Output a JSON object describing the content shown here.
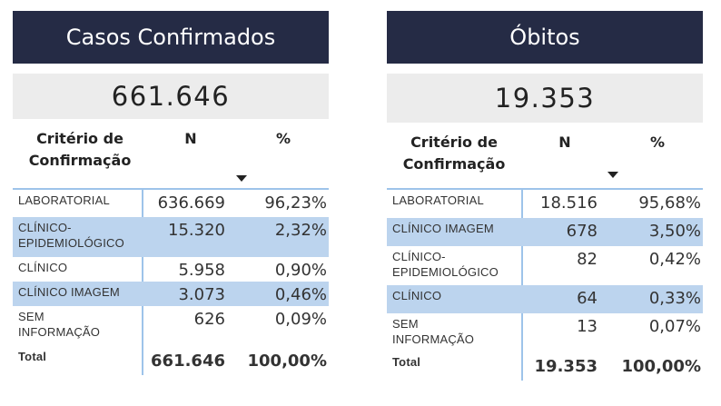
{
  "left": {
    "title": "Casos Confirmados",
    "kpi": "661.646",
    "headers": {
      "criterio_line1": "Critério de",
      "criterio_line2": "Confirmação",
      "n": "N",
      "pct": "%"
    },
    "rows": [
      {
        "label": "LABORATORIAL",
        "n": "636.669",
        "pct": "96,23%"
      },
      {
        "label": "CLÍNICO-\nEPIDEMIOLÓGICO",
        "label_l1": "CLÍNICO-",
        "label_l2": "EPIDEMIOLÓGICO",
        "n": "15.320",
        "pct": "2,32%"
      },
      {
        "label": "CLÍNICO",
        "n": "5.958",
        "pct": "0,90%"
      },
      {
        "label": "CLÍNICO IMAGEM",
        "n": "3.073",
        "pct": "0,46%"
      },
      {
        "label_l1": "SEM",
        "label_l2": "INFORMAÇÃO",
        "n": "626",
        "pct": "0,09%"
      }
    ],
    "total": {
      "label": "Total",
      "n": "661.646",
      "pct": "100,00%"
    }
  },
  "right": {
    "title": "Óbitos",
    "kpi": "19.353",
    "headers": {
      "criterio_line1": "Critério de",
      "criterio_line2": "Confirmação",
      "n": "N",
      "pct": "%"
    },
    "rows": [
      {
        "label": "LABORATORIAL",
        "n": "18.516",
        "pct": "95,68%"
      },
      {
        "label": "CLÍNICO IMAGEM",
        "n": "678",
        "pct": "3,50%"
      },
      {
        "label_l1": "CLÍNICO-",
        "label_l2": "EPIDEMIOLÓGICO",
        "n": "82",
        "pct": "0,42%"
      },
      {
        "label": "CLÍNICO",
        "n": "64",
        "pct": "0,33%"
      },
      {
        "label_l1": "SEM",
        "label_l2": "INFORMAÇÃO",
        "n": "13",
        "pct": "0,07%"
      }
    ],
    "total": {
      "label": "Total",
      "n": "19.353",
      "pct": "100,00%"
    }
  },
  "colors": {
    "header_bg": "#252b45",
    "kpi_bg": "#ececec",
    "highlight_row": "#bcd4ee",
    "grid_line": "#9ec4ea"
  }
}
